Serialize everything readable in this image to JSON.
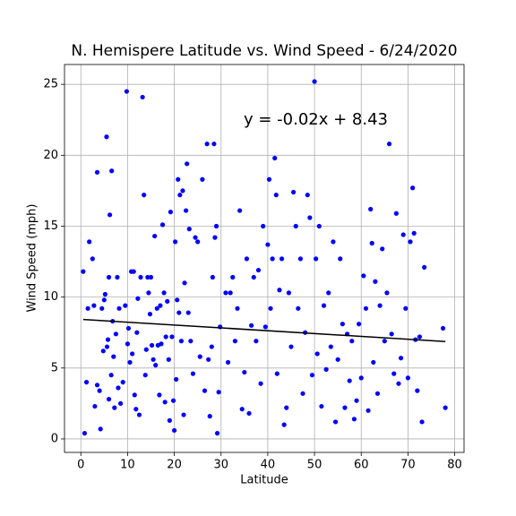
{
  "chart_data": {
    "type": "scatter",
    "title": "N. Hemispere Latitude vs. Wind Speed - 6/24/2020",
    "x_label": "Latitude",
    "y_label": "Wind Speed (mph)",
    "annotation": "y = -0.02x + 8.43",
    "color": "#0000ff",
    "x": [
      0.5,
      0.8,
      1.2,
      1.5,
      1.8,
      2.5,
      2.8,
      3,
      3.5,
      3.5,
      4,
      4.2,
      4.5,
      4.8,
      5,
      5.2,
      5.5,
      5.6,
      5.8,
      6,
      6,
      6.2,
      6.5,
      6.6,
      6.8,
      7,
      7.2,
      7.5,
      7.8,
      8,
      8.2,
      8.5,
      9,
      9.5,
      9.8,
      10,
      10.2,
      10.5,
      10.8,
      11,
      11.3,
      11.5,
      11.8,
      12,
      12.2,
      12.5,
      12.8,
      13.2,
      13.5,
      13.8,
      14,
      14.3,
      14.5,
      14.8,
      15,
      15.2,
      15.5,
      15.8,
      16,
      16.3,
      16.5,
      16.8,
      17,
      17.2,
      17.5,
      17.8,
      18,
      18.2,
      18.5,
      18.8,
      19,
      19.2,
      19.5,
      19.8,
      20,
      20.2,
      20.4,
      20.6,
      20.8,
      21,
      21.2,
      21.5,
      21.8,
      22,
      22.2,
      22.5,
      22.7,
      23,
      23.2,
      23.5,
      24,
      24.5,
      25,
      25.5,
      26,
      26.5,
      27,
      27.3,
      27.6,
      28,
      28.2,
      28.5,
      28.7,
      29,
      29.2,
      29.5,
      29.8,
      31,
      31.5,
      32,
      32.5,
      33,
      33.5,
      34,
      34.5,
      35,
      35.5,
      36,
      36.5,
      37,
      37.5,
      38,
      38.5,
      39,
      39.5,
      40,
      40.3,
      40.6,
      41,
      41.5,
      41.8,
      42,
      42.5,
      43,
      43.5,
      44,
      44.5,
      45,
      45.5,
      46,
      46.5,
      47,
      47.5,
      48,
      48.5,
      49,
      49.5,
      50,
      50.3,
      50.6,
      51,
      51.5,
      52,
      52.5,
      53,
      53.5,
      54,
      54.5,
      55,
      55.5,
      56,
      56.5,
      57,
      57.5,
      58,
      58.5,
      59,
      59.5,
      60,
      60.5,
      61,
      61.5,
      62,
      62.3,
      62.6,
      63,
      63.5,
      64,
      64.5,
      65,
      65.5,
      66,
      66.5,
      67,
      67.5,
      68,
      68.5,
      69,
      69.5,
      70,
      70.5,
      71,
      71.3,
      71.6,
      72,
      72.5,
      73,
      73.5,
      77.5,
      78
    ],
    "y": [
      11.8,
      0.4,
      4,
      9.2,
      13.9,
      12.7,
      9.4,
      2.3,
      18.8,
      3.8,
      3.4,
      0.7,
      9.2,
      6.2,
      9.8,
      10.2,
      21.3,
      6.5,
      7,
      11.4,
      2.8,
      15.8,
      4.5,
      18.9,
      8.3,
      5.8,
      2.2,
      7.4,
      11.4,
      3.6,
      9.2,
      2.5,
      4,
      9.4,
      24.5,
      6.7,
      7.8,
      5.4,
      11.8,
      6,
      11.8,
      3.1,
      2.1,
      7.5,
      9.9,
      1.7,
      11.4,
      24.1,
      17.2,
      4.5,
      6.3,
      11.4,
      10.3,
      8.8,
      11.4,
      6.6,
      5.6,
      14.3,
      5.2,
      9.2,
      6.6,
      3.1,
      9.4,
      6.7,
      15.1,
      10.3,
      2.6,
      7.2,
      9.7,
      5.6,
      1.3,
      16,
      7.2,
      2.7,
      0.6,
      13.9,
      4.2,
      9.8,
      18.3,
      8.9,
      17.2,
      6.9,
      17.5,
      1.7,
      11,
      16.1,
      19.4,
      8.9,
      14.8,
      6.9,
      4.6,
      14.2,
      13.9,
      5.8,
      18.3,
      3.4,
      20.8,
      5.6,
      1.6,
      6.5,
      11.4,
      20.8,
      14.2,
      15,
      0.4,
      3.3,
      7.9,
      10.3,
      5.4,
      10.3,
      11.4,
      6.9,
      9.2,
      16.1,
      2.1,
      4.7,
      12.7,
      1.8,
      8,
      11.4,
      6.9,
      11.9,
      3.9,
      15,
      7.9,
      13.7,
      18.3,
      9.2,
      12.7,
      19.8,
      17.2,
      4.6,
      10.5,
      12.7,
      1,
      2.2,
      10.3,
      6.5,
      17.4,
      15,
      9.2,
      12.7,
      3.2,
      7.5,
      17.2,
      15.6,
      4.5,
      25.2,
      12.7,
      6,
      15,
      2.3,
      9.4,
      4.9,
      10.3,
      6.5,
      13.9,
      1.2,
      5.6,
      12.7,
      8.1,
      2.2,
      7.4,
      4.1,
      6.9,
      1.4,
      2.7,
      8.1,
      4.3,
      11.5,
      9.2,
      2,
      16.2,
      13.8,
      5.4,
      11.1,
      3.2,
      9.4,
      13.4,
      6.9,
      10.3,
      20.8,
      7.4,
      4.6,
      15.9,
      3.9,
      5.7,
      14.4,
      9.2,
      4.3,
      13.9,
      17.7,
      14.5,
      7,
      3.4,
      7.2,
      1.2,
      12.1,
      7.8,
      2.2
    ],
    "fit": {
      "color": "#000000",
      "x": [
        0.5,
        78
      ],
      "y": [
        8.42,
        6.87
      ]
    },
    "xlim": [
      -3.5,
      82
    ],
    "ylim": [
      -0.95,
      26.4
    ],
    "xticks": [
      0,
      10,
      20,
      30,
      40,
      50,
      60,
      70,
      80
    ],
    "yticks": [
      0,
      5,
      10,
      15,
      20,
      25
    ],
    "grid": true
  }
}
